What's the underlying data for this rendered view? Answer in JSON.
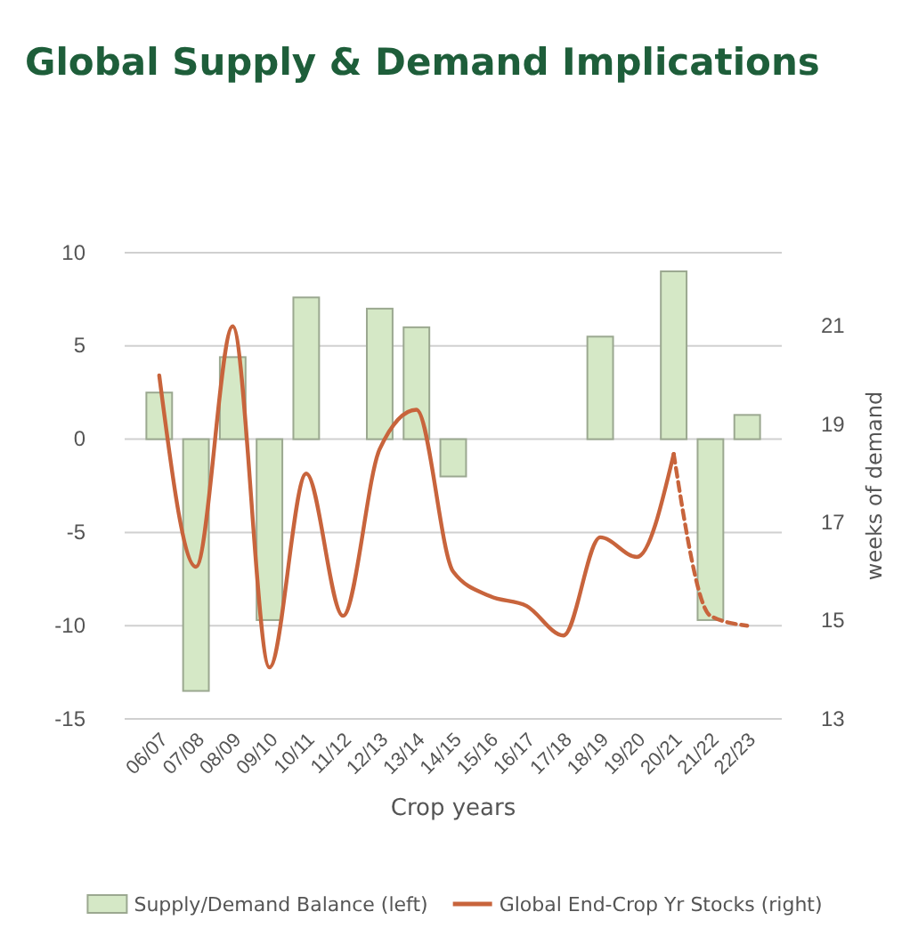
{
  "chart_data": {
    "type": "bar",
    "title": "Global Supply & Demand Implications",
    "xlabel": "Crop years",
    "y2label": "weeks of demand",
    "categories": [
      "06/07",
      "07/08",
      "08/09",
      "09/10",
      "10/11",
      "11/12",
      "12/13",
      "13/14",
      "14/15",
      "15/16",
      "16/17",
      "17/18",
      "18/19",
      "19/20",
      "20/21",
      "21/22",
      "22/23"
    ],
    "series": [
      {
        "name": "Supply/Demand Balance (left)",
        "color": "#d5e8c6",
        "values": [
          2.5,
          -13.5,
          4.4,
          -9.7,
          7.6,
          null,
          7.0,
          6.0,
          -2,
          null,
          null,
          null,
          5.5,
          null,
          9.0,
          -9.7,
          1.3
        ]
      },
      {
        "name": "Global End-Crop Yr Stocks (right)",
        "type": "line",
        "axis": "y2",
        "color": "#c8643c",
        "line_style": "solid",
        "values": [
          20,
          16.1,
          21,
          14.05,
          18,
          15.1,
          18.5,
          19.3,
          16,
          15.5,
          15.3,
          14.7,
          16.7,
          16.3,
          18.4,
          null,
          null
        ]
      },
      {
        "type": "line",
        "axis": "y2",
        "color": "#c8643c",
        "line_style": "dashed",
        "values": [
          null,
          null,
          null,
          null,
          null,
          null,
          null,
          null,
          null,
          null,
          null,
          null,
          null,
          null,
          18.4,
          15.1,
          14.9
        ]
      }
    ],
    "ylim": [
      -15,
      10
    ],
    "yticks": [
      -15,
      -10,
      -5,
      0,
      5,
      10
    ],
    "y2lim": [
      13,
      22.5
    ],
    "y2ticks": [
      13,
      15,
      17,
      19,
      21
    ],
    "grid": "y",
    "legend": "bottom",
    "marker": "none"
  }
}
